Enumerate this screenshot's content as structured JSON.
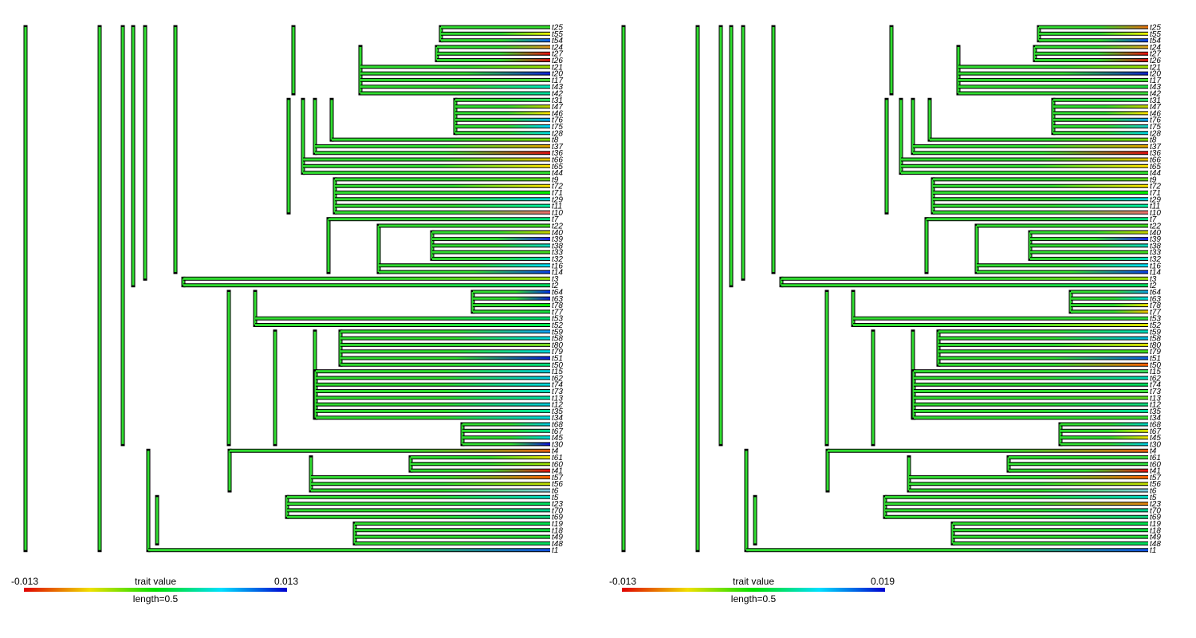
{
  "tips": [
    "t25",
    "t55",
    "t54",
    "t24",
    "t27",
    "t26",
    "t21",
    "t20",
    "t17",
    "t43",
    "t42",
    "t31",
    "t47",
    "t46",
    "t76",
    "t75",
    "t28",
    "t8",
    "t37",
    "t36",
    "t66",
    "t65",
    "t44",
    "t9",
    "t72",
    "t71",
    "t29",
    "t11",
    "t10",
    "t7",
    "t22",
    "t40",
    "t39",
    "t38",
    "t33",
    "t32",
    "t16",
    "t14",
    "t3",
    "t2",
    "t64",
    "t63",
    "t78",
    "t77",
    "t53",
    "t52",
    "t59",
    "t58",
    "t80",
    "t79",
    "t51",
    "t50",
    "t15",
    "t62",
    "t74",
    "t73",
    "t13",
    "t12",
    "t35",
    "t34",
    "t68",
    "t67",
    "t45",
    "t30",
    "t4",
    "t61",
    "t60",
    "t41",
    "t57",
    "t56",
    "t6",
    "t5",
    "t23",
    "t70",
    "t69",
    "t19",
    "t18",
    "t49",
    "t48",
    "t1"
  ],
  "tree": [
    [
      "t25",
      [
        "t55",
        "t54"
      ]
    ],
    [
      [
        [
          "t24",
          [
            "t27",
            "t26"
          ]
        ],
        [
          "t21",
          "t20"
        ]
      ],
      [
        "t17",
        [
          "t43",
          "t42"
        ]
      ]
    ]
  ],
  "panels": [
    {
      "legend": {
        "min_label": "-0.013",
        "max_label": "0.013",
        "title": "trait value",
        "scale_label": "length=0.5"
      },
      "tip_colors": [
        "#34dc2c",
        "#f0f000",
        "#1060f0",
        "#e09020",
        "#e81010",
        "#d41010",
        "#a0dc00",
        "#1020d8",
        "#50dc3a",
        "#00e8c0",
        "#00dca0",
        "#30e870",
        "#c8d000",
        "#ffe000",
        "#00b0ff",
        "#00d0ff",
        "#00d8e0",
        "#7cdc10",
        "#e0a000",
        "#dc1010",
        "#e8c000",
        "#ffe000",
        "#30dc30",
        "#60dc20",
        "#ffe000",
        "#00f000",
        "#00d8e0",
        "#00f0a8",
        "#f07070",
        "#00e080",
        "#40dc20",
        "#c8d000",
        "#2020f0",
        "#10d8c8",
        "#40d820",
        "#00d8c0",
        "#00e0ff",
        "#0a40e8",
        "#a0e010",
        "#00dc60",
        "#0030e8",
        "#1020d0",
        "#00f000",
        "#10dc40",
        "#00dc70",
        "#00ec50",
        "#10a0f8",
        "#00d8e0",
        "#80dc20",
        "#00d8e0",
        "#0a20d8",
        "#00e080",
        "#00c8d8",
        "#00c8e0",
        "#00d8e0",
        "#00d8c0",
        "#00e0b0",
        "#00c8d8",
        "#00e8a8",
        "#00d8e0",
        "#00c8e0",
        "#00e0a0",
        "#00d8e0",
        "#1010d8",
        "#e86010",
        "#f0e000",
        "#a0dc00",
        "#e81010",
        "#ff6000",
        "#c0d800",
        "#80c8e0",
        "#00d8c8",
        "#00dc60",
        "#00d090",
        "#10d080",
        "#00dc50",
        "#10dc40",
        "#20dc40",
        "#00dc60",
        "#1050e0"
      ]
    },
    {
      "legend": {
        "min_label": "-0.013",
        "max_label": "0.019",
        "title": "trait value",
        "scale_label": "length=0.5"
      },
      "tip_colors": [
        "#e87010",
        "#f0f000",
        "#1040e8",
        "#e0a020",
        "#e81010",
        "#d41010",
        "#a0dc00",
        "#1020c8",
        "#40dc30",
        "#20dc40",
        "#40dc40",
        "#30e870",
        "#c8d000",
        "#ffe000",
        "#10a0f8",
        "#20c8c8",
        "#00d0e0",
        "#7cdc10",
        "#e0a000",
        "#dc1010",
        "#e8c000",
        "#ffe000",
        "#30dc30",
        "#60dc20",
        "#ffe000",
        "#00f000",
        "#00d8e0",
        "#00f0a8",
        "#f07070",
        "#00e080",
        "#40dc20",
        "#c8d000",
        "#2020f0",
        "#10d8c8",
        "#40d820",
        "#00d8c0",
        "#00e0ff",
        "#0a40e8",
        "#a0e010",
        "#00dc60",
        "#10a0e0",
        "#00d8e0",
        "#f0e000",
        "#f0c000",
        "#30dc40",
        "#e0e000",
        "#00d8c0",
        "#00b8e0",
        "#e0e000",
        "#40dc20",
        "#1060e0",
        "#ff6000",
        "#40dc60",
        "#00d8b8",
        "#00dc60",
        "#40e040",
        "#60dc20",
        "#10d880",
        "#00e0a0",
        "#40dc30",
        "#00d0c0",
        "#e0e000",
        "#f0e000",
        "#00c8e0",
        "#e86010",
        "#40dc40",
        "#30dc40",
        "#e81010",
        "#ff6000",
        "#c0d800",
        "#80c8e0",
        "#00d8c8",
        "#e08010",
        "#00d090",
        "#10d080",
        "#00dc50",
        "#10dc40",
        "#20dc40",
        "#00dc60",
        "#1050e0"
      ]
    }
  ]
}
